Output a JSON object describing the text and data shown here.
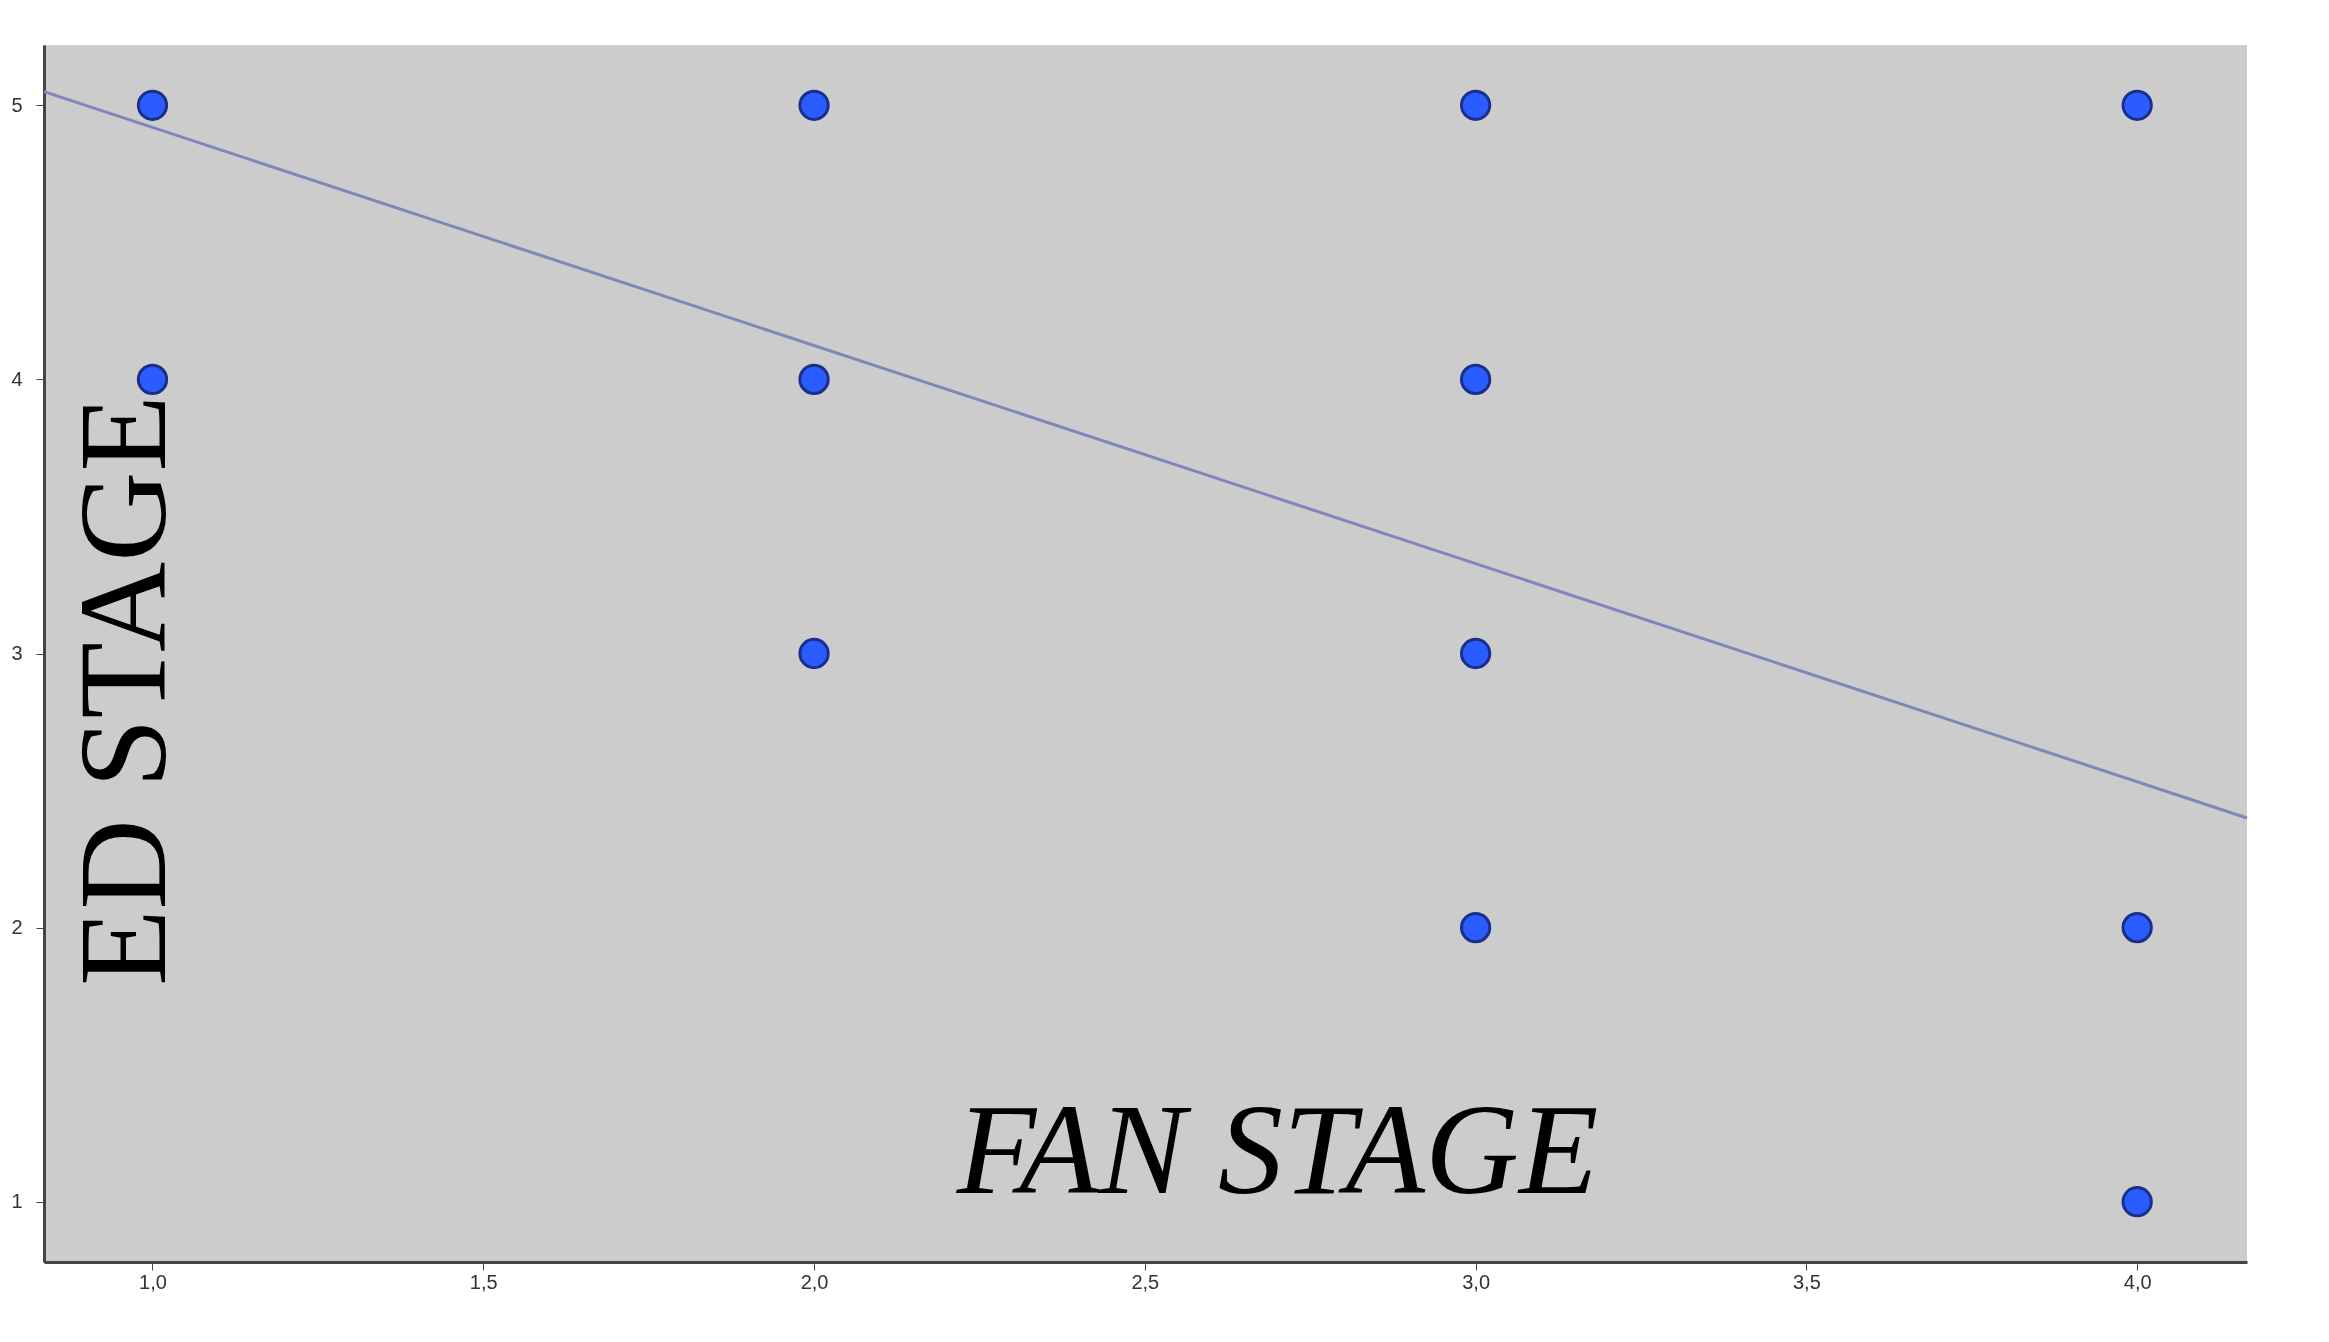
{
  "chart_data": {
    "type": "scatter",
    "xlabel": "FAN STAGE",
    "ylabel": "ED STAGE",
    "xlim": [
      0.836,
      4.166
    ],
    "ylim": [
      0.78,
      5.22
    ],
    "xticks": [
      {
        "value": 1.0,
        "label": "1,0"
      },
      {
        "value": 1.5,
        "label": "1,5"
      },
      {
        "value": 2.0,
        "label": "2,0"
      },
      {
        "value": 2.5,
        "label": "2,5"
      },
      {
        "value": 3.0,
        "label": "3,0"
      },
      {
        "value": 3.5,
        "label": "3,5"
      },
      {
        "value": 4.0,
        "label": "4,0"
      }
    ],
    "yticks": [
      1,
      2,
      3,
      4,
      5
    ],
    "grid": false,
    "series": [
      {
        "marker": "circle",
        "color": "#2a5cff",
        "x": [
          1,
          1,
          2,
          2,
          2,
          3,
          3,
          3,
          3,
          4,
          4,
          4
        ],
        "values": [
          5,
          4,
          5,
          4,
          3,
          5,
          4,
          3,
          2,
          5,
          2,
          1
        ]
      },
      {
        "type": "line",
        "color": "#7f86b8",
        "x": [
          0.836,
          4.166
        ],
        "values": [
          5.05,
          2.4
        ]
      }
    ]
  }
}
